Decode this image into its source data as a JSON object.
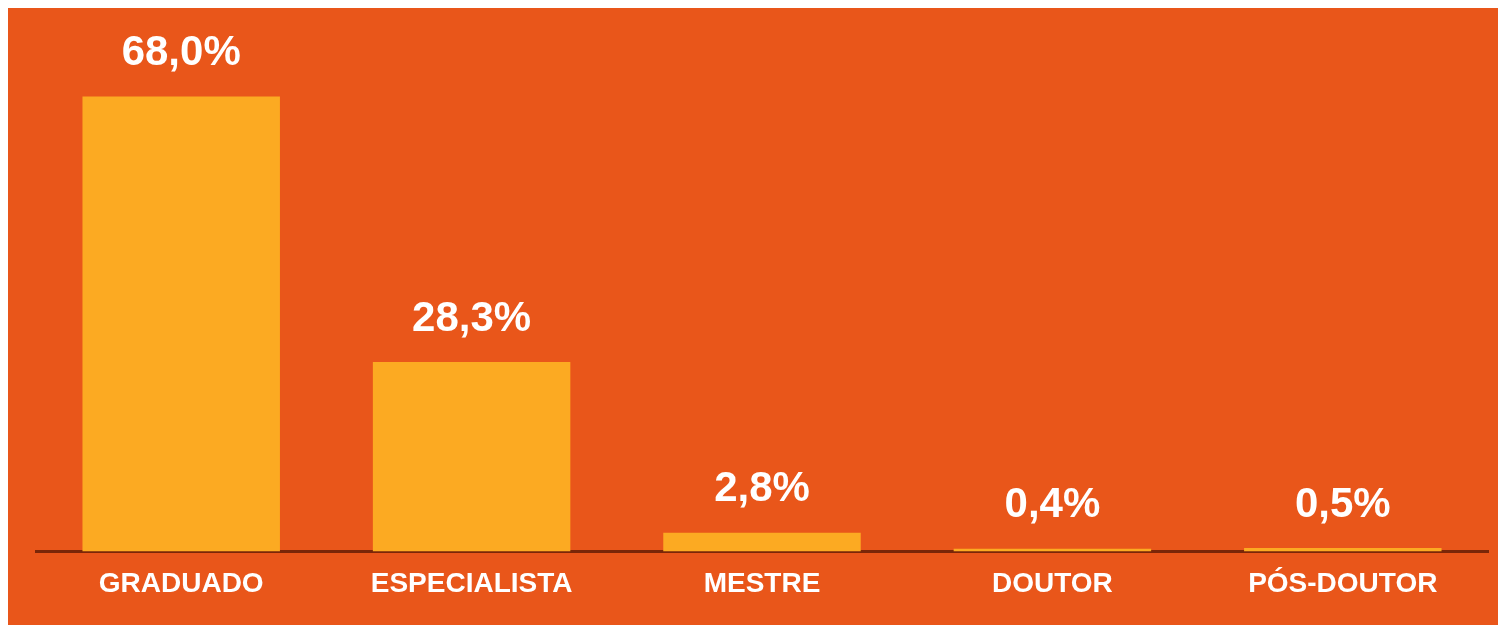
{
  "chart_data": {
    "type": "bar",
    "categories": [
      "GRADUADO",
      "ESPECIALISTA",
      "MESTRE",
      "DOUTOR",
      "PÓS-DOUTOR"
    ],
    "values": [
      68.0,
      28.3,
      2.8,
      0.4,
      0.5
    ],
    "value_labels": [
      "68,0%",
      "28,3%",
      "2,8%",
      "0,4%",
      "0,5%"
    ],
    "color": "#fcaa22",
    "grid": false,
    "legend": false
  }
}
